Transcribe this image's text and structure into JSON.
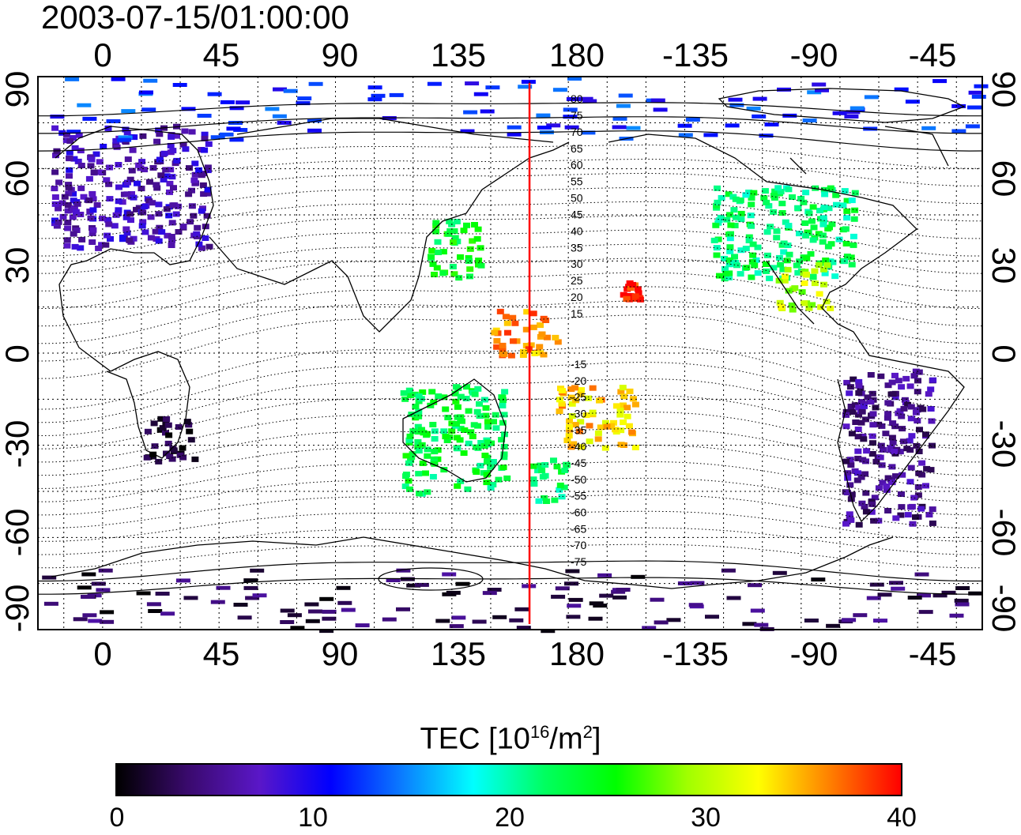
{
  "title": "2003-07-15/01:00:00",
  "lon_ticks": [
    "0",
    "45",
    "90",
    "135",
    "180",
    "-135",
    "-90",
    "-45"
  ],
  "lat_ticks": [
    "90",
    "60",
    "30",
    "0",
    "-30",
    "-60",
    "-90"
  ],
  "colorbar": {
    "label_prefix": "TEC  [10",
    "label_sup1": "16",
    "label_mid": "/m",
    "label_sup2": "2",
    "label_suffix": "]",
    "ticks": [
      "0",
      "10",
      "20",
      "30",
      "40"
    ],
    "colors": [
      "#000000",
      "#3a0a6e",
      "#5a17c8",
      "#0000ff",
      "#0b7cff",
      "#00ffff",
      "#00ff60",
      "#00ff00",
      "#a0ff00",
      "#ffff00",
      "#ff8000",
      "#ff0000"
    ]
  },
  "contour_labels_north": [
    "80",
    "75",
    "70",
    "65",
    "60",
    "55",
    "50",
    "45",
    "40",
    "35",
    "30",
    "25",
    "20",
    "15"
  ],
  "contour_labels_south": [
    "-15",
    "-20",
    "-25",
    "-30",
    "-35",
    "-40",
    "-45",
    "-50",
    "-55",
    "-60",
    "-65",
    "-70",
    "-75"
  ],
  "terminator": {
    "longitude": 165,
    "color": "#ff0000"
  },
  "chart_data": {
    "type": "heatmap",
    "title": "2003-07-15/01:00:00",
    "variable": "TEC [10^16/m^2]",
    "vmin": 0,
    "vmax": 40,
    "xlim": [
      -25,
      340
    ],
    "ylim": [
      -90,
      90
    ],
    "regions": [
      {
        "name": "Europe",
        "lon": [
          -20,
          40
        ],
        "lat": [
          35,
          75
        ],
        "tec": 7
      },
      {
        "name": "North America",
        "lon": [
          -125,
          -70
        ],
        "lat": [
          25,
          55
        ],
        "tec": 22
      },
      {
        "name": "Gulf of Mexico",
        "lon": [
          -100,
          -80
        ],
        "lat": [
          15,
          30
        ],
        "tec": 30
      },
      {
        "name": "Japan",
        "lon": [
          125,
          145
        ],
        "lat": [
          25,
          45
        ],
        "tec": 24
      },
      {
        "name": "Hawaii",
        "lon": [
          -160,
          -153
        ],
        "lat": [
          18,
          24
        ],
        "tec": 39
      },
      {
        "name": "Western Pacific",
        "lon": [
          150,
          175
        ],
        "lat": [
          0,
          15
        ],
        "tec": 36
      },
      {
        "name": "South Pacific",
        "lon": [
          175,
          205
        ],
        "lat": [
          -30,
          -10
        ],
        "tec": 34
      },
      {
        "name": "Australia",
        "lon": [
          115,
          155
        ],
        "lat": [
          -45,
          -10
        ],
        "tec": 23
      },
      {
        "name": "New Zealand",
        "lon": [
          165,
          180
        ],
        "lat": [
          -48,
          -34
        ],
        "tec": 22
      },
      {
        "name": "South Africa",
        "lon": [
          15,
          35
        ],
        "lat": [
          -35,
          -20
        ],
        "tec": 2
      },
      {
        "name": "South America",
        "lon": [
          -75,
          -40
        ],
        "lat": [
          -55,
          -5
        ],
        "tec": 5
      },
      {
        "name": "Antarctica",
        "lon": [
          -25,
          340
        ],
        "lat": [
          -90,
          -70
        ],
        "tec": 3
      },
      {
        "name": "Arctic",
        "lon": [
          -25,
          340
        ],
        "lat": [
          70,
          90
        ],
        "tec": 12
      }
    ]
  }
}
